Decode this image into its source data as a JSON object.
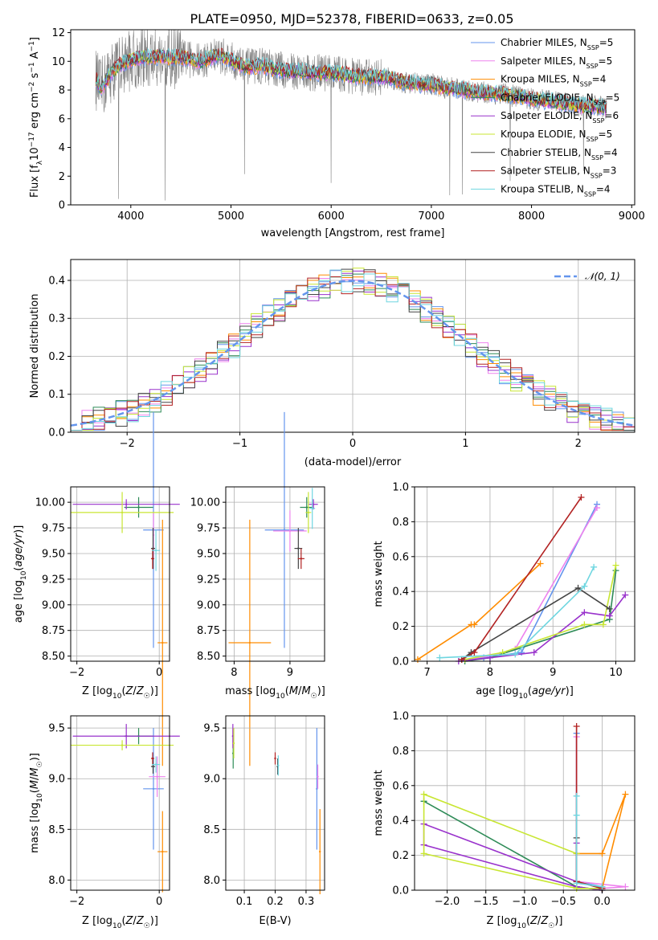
{
  "title": "PLATE=0950, MJD=52378, FIBERID=0633, z=0.05",
  "series_names": [
    "Chabrier MILES, N$_{SSP}$=5",
    "Salpeter MILES, N$_{SSP}$=5",
    "Kroupa MILES, N$_{SSP}$=4",
    "Chabrier ELODIE, N$_{SSP}$=5",
    "Salpeter ELODIE, N$_{SSP}$=6",
    "Kroupa ELODIE, N$_{SSP}$=5",
    "Chabrier STELIB, N$_{SSP}$=4",
    "Salpeter STELIB, N$_{SSP}$=3",
    "Kroupa STELIB, N$_{SSP}$=4"
  ],
  "legend_labels": [
    {
      "base": "Chabrier MILES, N",
      "sub": "SSP",
      "tail": "=5"
    },
    {
      "base": "Salpeter MILES, N",
      "sub": "SSP",
      "tail": "=5"
    },
    {
      "base": "Kroupa MILES, N",
      "sub": "SSP",
      "tail": "=4"
    },
    {
      "base": "Chabrier ELODIE, N",
      "sub": "SSP",
      "tail": "=5"
    },
    {
      "base": "Salpeter ELODIE, N",
      "sub": "SSP",
      "tail": "=6"
    },
    {
      "base": "Kroupa ELODIE, N",
      "sub": "SSP",
      "tail": "=5"
    },
    {
      "base": "Chabrier STELIB, N",
      "sub": "SSP",
      "tail": "=4"
    },
    {
      "base": "Salpeter STELIB, N",
      "sub": "SSP",
      "tail": "=3"
    },
    {
      "base": "Kroupa STELIB, N",
      "sub": "SSP",
      "tail": "=4"
    }
  ],
  "colors": [
    "#6495ed",
    "#ee82ee",
    "#ff8c00",
    "#2e8b57",
    "#9932cc",
    "#c8e632",
    "#444444",
    "#b22222",
    "#6fd6e0"
  ],
  "chart_data": [
    {
      "id": "spectrum",
      "type": "line",
      "xlabel": "wavelength [Angstrom, rest frame]",
      "ylabel": "Flux [f_λ 10^-17 erg cm^-2 s^-1 A^-1]",
      "xlim": [
        3400,
        9030
      ],
      "ylim": [
        0,
        12.2
      ],
      "xticks": [
        4000,
        5000,
        6000,
        7000,
        8000,
        9000
      ],
      "yticks": [
        0,
        2,
        4,
        6,
        8,
        10,
        12
      ],
      "data_color": "#808080",
      "model_x": [
        3650,
        3700,
        3800,
        3900,
        4000,
        4100,
        4200,
        4300,
        4400,
        4500,
        4600,
        4700,
        4800,
        4900,
        5000,
        5100,
        5200,
        5300,
        5400,
        5500,
        5600,
        5700,
        5800,
        5900,
        6000,
        6100,
        6200,
        6300,
        6400,
        6500,
        6600,
        6700,
        6800,
        6900,
        7000,
        7100,
        7200,
        7300,
        7400,
        7500,
        7600,
        7700,
        7800,
        7900,
        8000,
        8100,
        8200,
        8300,
        8400,
        8500,
        8600,
        8700,
        8750
      ],
      "model_y": [
        8.8,
        8.0,
        9.2,
        9.8,
        10.1,
        10.3,
        10.2,
        10.4,
        10.2,
        10.3,
        10.1,
        10.0,
        10.3,
        10.4,
        10.1,
        9.7,
        9.6,
        9.7,
        9.5,
        9.4,
        9.3,
        9.3,
        9.2,
        9.2,
        9.2,
        9.1,
        9.0,
        8.9,
        8.9,
        8.9,
        8.8,
        8.6,
        8.5,
        8.4,
        8.4,
        8.2,
        8.1,
        8.0,
        7.9,
        7.8,
        7.8,
        7.7,
        7.6,
        7.5,
        7.4,
        7.3,
        7.2,
        7.1,
        7.0,
        6.9,
        6.9,
        6.8,
        6.7
      ]
    },
    {
      "id": "residuals",
      "type": "histogram",
      "xlabel": "(data-model)/error",
      "ylabel": "Normed distribution",
      "xlim": [
        -2.5,
        2.5
      ],
      "ylim": [
        0,
        0.455
      ],
      "xticks": [
        -2,
        -1,
        0,
        1,
        2
      ],
      "yticks": [
        0.0,
        0.1,
        0.2,
        0.3,
        0.4
      ],
      "gaussian_label": "𝒩(0, 1)",
      "gaussian_color": "#6495ed",
      "bin_width": 0.1
    },
    {
      "id": "age_vs_Z",
      "type": "errorbar",
      "xlabel": "Z [log10(Z/Z☉)]",
      "ylabel": "age  [log10(age/yr)]",
      "xlim": [
        -2.15,
        0.25
      ],
      "ylim": [
        8.45,
        10.15
      ],
      "xticks": [
        -2,
        0
      ],
      "yticks": [
        8.5,
        8.75,
        9.0,
        9.25,
        9.5,
        9.75,
        10.0
      ],
      "points": [
        {
          "x": -0.14,
          "y": 9.73,
          "xerr": 0.25,
          "yerr": 1.15
        },
        {
          "x": -0.14,
          "y": 9.68,
          "xerr": 0.0,
          "yerr": 0.22
        },
        {
          "x": 0.08,
          "y": 8.63,
          "xerr": 0.12,
          "yerr": 1.2
        },
        {
          "x": -0.5,
          "y": 9.95,
          "xerr": 0.35,
          "yerr": 0.1
        },
        {
          "x": -0.8,
          "y": 9.98,
          "xerr": 1.3,
          "yerr": 0.05
        },
        {
          "x": -0.9,
          "y": 9.9,
          "xerr": 1.25,
          "yerr": 0.2
        },
        {
          "x": -0.15,
          "y": 9.55,
          "xerr": 0.05,
          "yerr": 0.2
        },
        {
          "x": -0.16,
          "y": 9.45,
          "xerr": 0.04,
          "yerr": 0.1
        },
        {
          "x": -0.08,
          "y": 9.53,
          "xerr": 0.1,
          "yerr": 0.2
        }
      ]
    },
    {
      "id": "age_vs_mass",
      "type": "errorbar",
      "xlabel": "mass [log10(M/M☉)]",
      "ylabel": "",
      "xlim": [
        7.85,
        9.62
      ],
      "ylim": [
        8.45,
        10.15
      ],
      "xticks": [
        8,
        9
      ],
      "yticks": [
        8.5,
        8.75,
        9.0,
        9.25,
        9.5,
        9.75,
        10.0
      ],
      "points": [
        {
          "x": 8.9,
          "y": 9.73,
          "xerr": 0.35,
          "yerr": 1.15
        },
        {
          "x": 9.0,
          "y": 9.72,
          "xerr": 0.3,
          "yerr": 0.2
        },
        {
          "x": 8.28,
          "y": 8.63,
          "xerr": 0.38,
          "yerr": 1.2
        },
        {
          "x": 9.3,
          "y": 9.95,
          "xerr": 0.12,
          "yerr": 0.1
        },
        {
          "x": 9.42,
          "y": 9.98,
          "xerr": 0.08,
          "yerr": 0.05
        },
        {
          "x": 9.33,
          "y": 9.9,
          "xerr": 0.05,
          "yerr": 0.2
        },
        {
          "x": 9.15,
          "y": 9.55,
          "xerr": 0.07,
          "yerr": 0.2
        },
        {
          "x": 9.2,
          "y": 9.45,
          "xerr": 0.06,
          "yerr": 0.1
        },
        {
          "x": 9.4,
          "y": 9.94,
          "xerr": 0.05,
          "yerr": 0.2
        }
      ]
    },
    {
      "id": "massweight_vs_age",
      "type": "line",
      "xlabel": "age  [log10(age/yr)]",
      "ylabel": "mass weight",
      "xlim": [
        6.8,
        10.3
      ],
      "ylim": [
        0,
        1
      ],
      "xticks": [
        7,
        8,
        9,
        10
      ],
      "yticks": [
        0.0,
        0.2,
        0.4,
        0.6,
        0.8,
        1.0
      ],
      "series": [
        {
          "x": [
            7.55,
            7.9,
            8.5,
            9.7
          ],
          "y": [
            0.01,
            0.02,
            0.05,
            0.9
          ]
        },
        {
          "x": [
            7.6,
            8.0,
            8.4,
            9.7
          ],
          "y": [
            0.01,
            0.03,
            0.07,
            0.88
          ]
        },
        {
          "x": [
            6.85,
            7.7,
            7.75,
            8.8
          ],
          "y": [
            0.01,
            0.21,
            0.21,
            0.56
          ]
        },
        {
          "x": [
            7.6,
            8.0,
            9.9,
            10.0
          ],
          "y": [
            0.0,
            0.02,
            0.24,
            0.52
          ]
        },
        {
          "x": [
            7.5,
            8.0,
            8.7,
            9.5,
            9.9,
            10.15
          ],
          "y": [
            0.0,
            0.02,
            0.05,
            0.28,
            0.26,
            0.38
          ]
        },
        {
          "x": [
            7.6,
            8.2,
            9.5,
            9.8,
            10.0
          ],
          "y": [
            0.01,
            0.05,
            0.21,
            0.21,
            0.55
          ]
        },
        {
          "x": [
            7.55,
            7.7,
            9.4,
            9.9
          ],
          "y": [
            0.01,
            0.05,
            0.42,
            0.3
          ]
        },
        {
          "x": [
            7.55,
            7.75,
            9.45
          ],
          "y": [
            0.01,
            0.05,
            0.94
          ]
        },
        {
          "x": [
            7.2,
            8.4,
            9.5,
            9.65
          ],
          "y": [
            0.02,
            0.04,
            0.43,
            0.54
          ]
        }
      ]
    },
    {
      "id": "mass_vs_Z",
      "type": "errorbar",
      "xlabel": "Z [log10(Z/Z☉)]",
      "ylabel": "mass [log10(M/M☉)]",
      "xlim": [
        -2.15,
        0.25
      ],
      "ylim": [
        7.9,
        9.62
      ],
      "xticks": [
        -2,
        0
      ],
      "yticks": [
        8.0,
        8.5,
        9.0,
        9.5
      ],
      "points": [
        {
          "x": -0.14,
          "y": 8.9,
          "xerr": 0.25,
          "yerr": 0.6
        },
        {
          "x": -0.05,
          "y": 9.02,
          "xerr": 0.2,
          "yerr": 0.2
        },
        {
          "x": 0.08,
          "y": 8.28,
          "xerr": 0.12,
          "yerr": 0.4
        },
        {
          "x": -0.5,
          "y": 9.42,
          "xerr": 0.35,
          "yerr": 0.08
        },
        {
          "x": -0.8,
          "y": 9.42,
          "xerr": 1.3,
          "yerr": 0.12
        },
        {
          "x": -0.9,
          "y": 9.33,
          "xerr": 1.25,
          "yerr": 0.05
        },
        {
          "x": -0.15,
          "y": 9.12,
          "xerr": 0.05,
          "yerr": 0.07
        },
        {
          "x": -0.16,
          "y": 9.2,
          "xerr": 0.04,
          "yerr": 0.06
        },
        {
          "x": -0.08,
          "y": 9.14,
          "xerr": 0.1,
          "yerr": 0.08
        }
      ]
    },
    {
      "id": "mass_vs_ebv",
      "type": "errorbar",
      "xlabel": "E(B-V)",
      "ylabel": "",
      "xlim": [
        0.04,
        0.36
      ],
      "ylim": [
        7.9,
        9.62
      ],
      "xticks": [
        0.1,
        0.2,
        0.3
      ],
      "yticks": [
        8.0,
        8.5,
        9.0,
        9.5
      ],
      "points": [
        {
          "x": 0.335,
          "y": 8.9,
          "xerr": 0,
          "yerr": 0.6
        },
        {
          "x": 0.338,
          "y": 9.02,
          "xerr": 0,
          "yerr": 0.12
        },
        {
          "x": 0.345,
          "y": 8.28,
          "xerr": 0,
          "yerr": 0.42
        },
        {
          "x": 0.064,
          "y": 9.25,
          "xerr": 0,
          "yerr": 0.15
        },
        {
          "x": 0.063,
          "y": 9.42,
          "xerr": 0,
          "yerr": 0.12
        },
        {
          "x": 0.066,
          "y": 9.35,
          "xerr": 0,
          "yerr": 0.15
        },
        {
          "x": 0.208,
          "y": 9.12,
          "xerr": 0,
          "yerr": 0.08
        },
        {
          "x": 0.2,
          "y": 9.2,
          "xerr": 0,
          "yerr": 0.06
        },
        {
          "x": 0.21,
          "y": 9.13,
          "xerr": 0,
          "yerr": 0.1
        }
      ]
    },
    {
      "id": "massweight_vs_Z",
      "type": "line",
      "xlabel": "Z [log10(Z/Z☉)]",
      "ylabel": "mass weight",
      "xlim": [
        -2.42,
        0.42
      ],
      "ylim": [
        0,
        1
      ],
      "xticks": [
        -2.0,
        -1.5,
        -1.0,
        -0.5,
        0.0
      ],
      "yticks": [
        0.0,
        0.2,
        0.4,
        0.6,
        0.8,
        1.0
      ],
      "xticklabels": [
        "−2.0",
        "−1.5",
        "−1.0",
        "−0.5",
        "0.0"
      ],
      "series": [
        {
          "x": [
            0.0,
            0.0,
            -0.33,
            -0.33
          ],
          "y": [
            0.01,
            0.02,
            0.05,
            0.9
          ]
        },
        {
          "x": [
            0.0,
            0.3,
            -0.33,
            -0.33
          ],
          "y": [
            0.01,
            0.02,
            0.05,
            0.88
          ]
        },
        {
          "x": [
            0.0,
            0.3,
            0.0,
            -0.33
          ],
          "y": [
            0.01,
            0.55,
            0.21,
            0.21
          ]
        },
        {
          "x": [
            0.0,
            -0.33,
            -2.3
          ],
          "y": [
            0.0,
            0.02,
            0.51
          ]
        },
        {
          "x": [
            0.0,
            -0.33,
            -2.3,
            -2.3,
            -0.33,
            -0.33
          ],
          "y": [
            0.0,
            0.02,
            0.26,
            0.38,
            0.05,
            0.27
          ]
        },
        {
          "x": [
            0.0,
            -0.33,
            -2.3,
            -2.3,
            -0.33
          ],
          "y": [
            0.01,
            0.01,
            0.21,
            0.55,
            0.21
          ]
        },
        {
          "x": [
            0.0,
            -0.33,
            -0.33
          ],
          "y": [
            0.01,
            0.05,
            0.3
          ]
        },
        {
          "x": [
            0.0,
            -0.33,
            -0.33
          ],
          "y": [
            0.01,
            0.05,
            0.94
          ]
        },
        {
          "x": [
            0.0,
            -0.33,
            -0.33,
            -0.33
          ],
          "y": [
            0.02,
            0.04,
            0.43,
            0.54
          ]
        }
      ]
    }
  ]
}
